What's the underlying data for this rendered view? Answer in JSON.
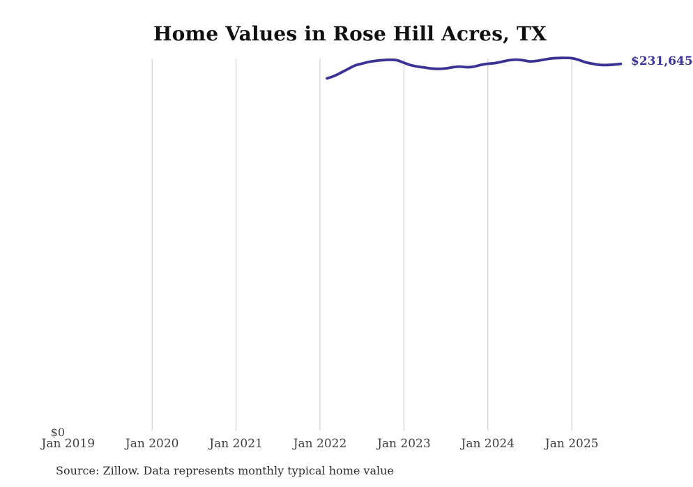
{
  "chart_data": {
    "type": "line",
    "title": "Home Values in Rose Hill Acres, TX",
    "source_note": "Source: Zillow. Data represents monthly typical home value",
    "latest_value_label": "$231,645",
    "y_zero_label": "$0",
    "xlabel": "",
    "ylabel": "",
    "ylim": [
      0,
      235000
    ],
    "grid": "vertical-only",
    "legend": "none",
    "x_ticks": [
      {
        "label": "Jan 2019",
        "gridline": false
      },
      {
        "label": "Jan 2020",
        "gridline": true
      },
      {
        "label": "Jan 2021",
        "gridline": true
      },
      {
        "label": "Jan 2022",
        "gridline": true
      },
      {
        "label": "Jan 2023",
        "gridline": true
      },
      {
        "label": "Jan 2024",
        "gridline": true
      },
      {
        "label": "Jan 2025",
        "gridline": true
      }
    ],
    "series": [
      {
        "name": "Monthly typical home value",
        "start_month": "2022-02",
        "end_month": "2025-08",
        "values": [
          222500,
          224000,
          226100,
          228400,
          230600,
          231800,
          232900,
          233600,
          234000,
          234200,
          233900,
          232300,
          230800,
          229900,
          229300,
          228700,
          228500,
          228800,
          229500,
          229900,
          229500,
          229900,
          231000,
          231700,
          232100,
          233000,
          233900,
          234300,
          233900,
          233200,
          233500,
          234300,
          235000,
          235300,
          235400,
          235200,
          234100,
          232600,
          231700,
          231000,
          230900,
          231200,
          231645
        ]
      }
    ],
    "colors": {
      "line": "#3a3396",
      "latest_value_text": "#3a3396",
      "gridline": "#c9c9c9",
      "tick_text": "#3f3f3f",
      "title_text": "#101010",
      "source_text": "#2e2e2e",
      "background": "#ffffff"
    }
  }
}
